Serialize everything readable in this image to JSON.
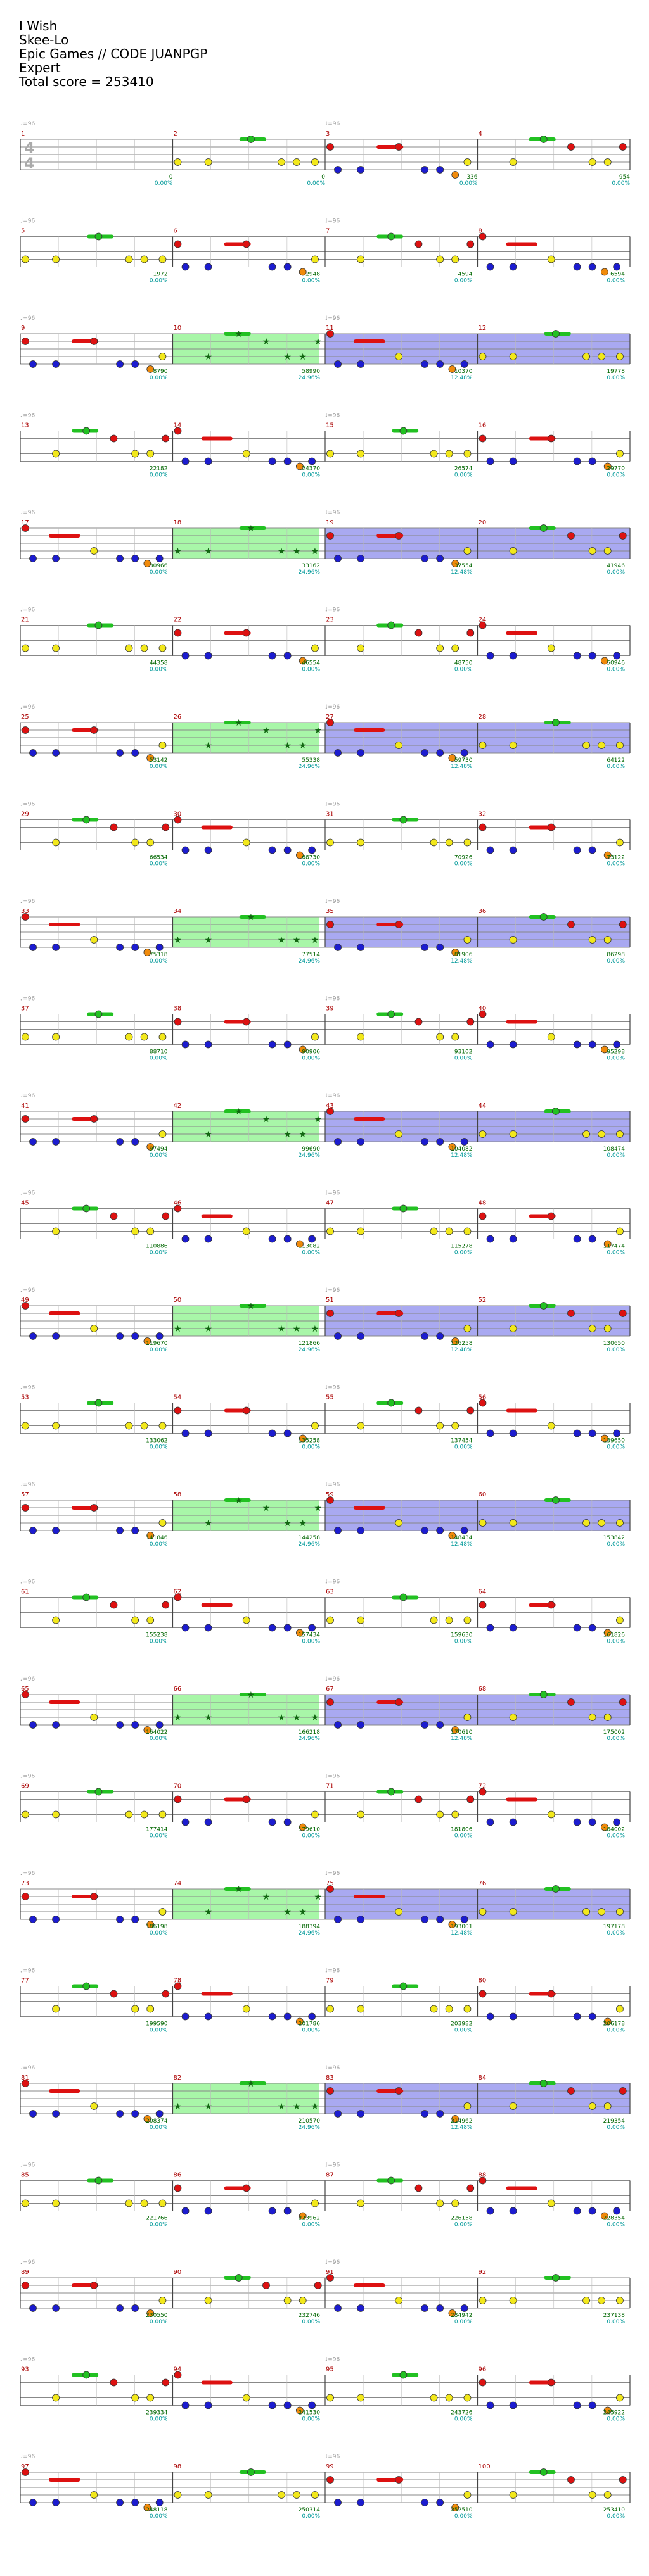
{
  "header": {
    "song": "I Wish",
    "artist": "Skee-Lo",
    "charter": "Epic Games // CODE JUANPGP",
    "difficulty": "Expert",
    "total_score": "Total score = 253410"
  },
  "tempo_label": "♩=96",
  "time_signature": [
    "4",
    "4"
  ],
  "colors": {
    "green": "#22c122",
    "red": "#dd1111",
    "yellow": "#f2e81b",
    "blue": "#1c1ccf",
    "orange": "#f08a0b",
    "star_power": "#9ff59f",
    "overdrive": "#a0a0f0",
    "label": "#009900"
  },
  "measures": [
    {
      "n": "1",
      "score": "",
      "pct": "",
      "sp": false,
      "od": false,
      "group": 0
    },
    {
      "n": "2",
      "score": "0",
      "pct": "0.00%",
      "sp": false,
      "od": false,
      "group": 0
    },
    {
      "n": "3",
      "score": "0",
      "pct": "0.00%",
      "sp": false,
      "od": false,
      "group": 0
    },
    {
      "n": "4",
      "score": "336",
      "pct": "0.00%",
      "sp": false,
      "od": false,
      "group": 0
    },
    {
      "n": "",
      "score": "954",
      "pct": "0.00%",
      "sp": false,
      "od": false,
      "group": 0
    },
    {
      "n": "5",
      "score": "1972",
      "pct": "0.00%",
      "sp": false,
      "od": false,
      "group": 1
    },
    {
      "n": "6",
      "score": "2948",
      "pct": "0.00%",
      "sp": false,
      "od": false,
      "group": 1
    },
    {
      "n": "7",
      "score": "4594",
      "pct": "0.00%",
      "sp": false,
      "od": false,
      "group": 1
    },
    {
      "n": "8",
      "score": "6594",
      "pct": "0.00%",
      "sp": false,
      "od": false,
      "group": 1
    },
    {
      "n": "9",
      "score": "8790",
      "pct": "0.00%",
      "sp": false,
      "od": false,
      "group": 2
    },
    {
      "n": "10",
      "score": "58990",
      "pct": "24.96%",
      "sp": true,
      "od": false,
      "group": 2
    },
    {
      "n": "11",
      "score": "10370",
      "pct": "12.48%",
      "sp": false,
      "od": true,
      "group": 2
    },
    {
      "n": "12",
      "score": "19778",
      "pct": "0.00%",
      "sp": false,
      "od": true,
      "group": 2
    }
  ],
  "rows": [
    {
      "labels": [
        "1",
        "2",
        "3",
        "4"
      ],
      "scores": [
        "",
        "0",
        "0",
        "336",
        "954"
      ],
      "pcts": [
        "",
        "0.00%",
        "0.00%",
        "0.00%",
        "0.00%"
      ],
      "sp": false,
      "od": false
    },
    {
      "labels": [
        "5",
        "6",
        "7",
        "8"
      ],
      "scores": [
        "1972",
        "2948",
        "4594",
        "6594"
      ],
      "pcts": [
        "0.00%",
        "0.00%",
        "0.00%",
        "0.00%"
      ],
      "sp": false,
      "od": false
    },
    {
      "labels": [
        "9",
        "10",
        "11",
        "12"
      ],
      "scores": [
        "8790",
        "58990",
        "10370",
        "19778"
      ],
      "pcts": [
        "0.00%",
        "24.96%",
        "12.48%",
        "0.00%"
      ],
      "sp": true,
      "od": true
    },
    {
      "labels": [
        "13",
        "14",
        "15",
        "16"
      ],
      "scores": [
        "22182",
        "24370",
        "26574",
        "29770"
      ],
      "pcts": [
        "0.00%",
        "0.00%",
        "0.00%",
        "0.00%"
      ],
      "sp": false,
      "od": false
    },
    {
      "labels": [
        "17",
        "18",
        "19",
        "20"
      ],
      "scores": [
        "30966",
        "33162",
        "37554",
        "41946"
      ],
      "pcts": [
        "0.00%",
        "24.96%",
        "12.48%",
        "0.00%"
      ],
      "sp": true,
      "od": true
    },
    {
      "labels": [
        "21",
        "22",
        "23",
        "24"
      ],
      "scores": [
        "44358",
        "46554",
        "48750",
        "50946"
      ],
      "pcts": [
        "0.00%",
        "0.00%",
        "0.00%",
        "0.00%"
      ],
      "sp": false,
      "od": false
    },
    {
      "labels": [
        "25",
        "26",
        "27",
        "28"
      ],
      "scores": [
        "53142",
        "55338",
        "59730",
        "64122"
      ],
      "pcts": [
        "0.00%",
        "24.96%",
        "12.48%",
        "0.00%"
      ],
      "sp": true,
      "od": true
    },
    {
      "labels": [
        "29",
        "30",
        "31",
        "32"
      ],
      "scores": [
        "66534",
        "68730",
        "70926",
        "73122"
      ],
      "pcts": [
        "0.00%",
        "0.00%",
        "0.00%",
        "0.00%"
      ],
      "sp": false,
      "od": false
    },
    {
      "labels": [
        "33",
        "34",
        "35",
        "36"
      ],
      "scores": [
        "75318",
        "77514",
        "81906",
        "86298"
      ],
      "pcts": [
        "0.00%",
        "24.96%",
        "12.48%",
        "0.00%"
      ],
      "sp": true,
      "od": true
    },
    {
      "labels": [
        "37",
        "38",
        "39",
        "40"
      ],
      "scores": [
        "88710",
        "90906",
        "93102",
        "95298"
      ],
      "pcts": [
        "0.00%",
        "0.00%",
        "0.00%",
        "0.00%"
      ],
      "sp": false,
      "od": false
    },
    {
      "labels": [
        "41",
        "42",
        "43",
        "44"
      ],
      "scores": [
        "97494",
        "99690",
        "104082",
        "108474"
      ],
      "pcts": [
        "0.00%",
        "24.96%",
        "12.48%",
        "0.00%"
      ],
      "sp": true,
      "od": true
    },
    {
      "labels": [
        "45",
        "46",
        "47",
        "48"
      ],
      "scores": [
        "110886",
        "113082",
        "115278",
        "117474"
      ],
      "pcts": [
        "0.00%",
        "0.00%",
        "0.00%",
        "0.00%"
      ],
      "sp": false,
      "od": false
    },
    {
      "labels": [
        "49",
        "50",
        "51",
        "52"
      ],
      "scores": [
        "119670",
        "121866",
        "126258",
        "130650"
      ],
      "pcts": [
        "0.00%",
        "24.96%",
        "12.48%",
        "0.00%"
      ],
      "sp": true,
      "od": true
    },
    {
      "labels": [
        "53",
        "54",
        "55",
        "56"
      ],
      "scores": [
        "133062",
        "135258",
        "137454",
        "139650"
      ],
      "pcts": [
        "0.00%",
        "0.00%",
        "0.00%",
        "0.00%"
      ],
      "sp": false,
      "od": false
    },
    {
      "labels": [
        "57",
        "58",
        "59",
        "60"
      ],
      "scores": [
        "141846",
        "144258",
        "148434",
        "153842"
      ],
      "pcts": [
        "0.00%",
        "24.96%",
        "12.48%",
        "0.00%"
      ],
      "sp": true,
      "od": true
    },
    {
      "labels": [
        "61",
        "62",
        "63",
        "64"
      ],
      "scores": [
        "155238",
        "157434",
        "159630",
        "161826"
      ],
      "pcts": [
        "0.00%",
        "0.00%",
        "0.00%",
        "0.00%"
      ],
      "sp": false,
      "od": false
    },
    {
      "labels": [
        "65",
        "66",
        "67",
        "68"
      ],
      "scores": [
        "164022",
        "166218",
        "170610",
        "175002"
      ],
      "pcts": [
        "0.00%",
        "24.96%",
        "12.48%",
        "0.00%"
      ],
      "sp": true,
      "od": true
    },
    {
      "labels": [
        "69",
        "70",
        "71",
        "72"
      ],
      "scores": [
        "177414",
        "179610",
        "181806",
        "184002"
      ],
      "pcts": [
        "0.00%",
        "0.00%",
        "0.00%",
        "0.00%"
      ],
      "sp": false,
      "od": false
    },
    {
      "labels": [
        "73",
        "74",
        "75",
        "76"
      ],
      "scores": [
        "186198",
        "188394",
        "193001",
        "197178"
      ],
      "pcts": [
        "0.00%",
        "24.96%",
        "12.48%",
        "0.00%"
      ],
      "sp": true,
      "od": true
    },
    {
      "labels": [
        "77",
        "78",
        "79",
        "80"
      ],
      "scores": [
        "199590",
        "201786",
        "203982",
        "206178"
      ],
      "pcts": [
        "0.00%",
        "0.00%",
        "0.00%",
        "0.00%"
      ],
      "sp": false,
      "od": false
    },
    {
      "labels": [
        "81",
        "82",
        "83",
        "84"
      ],
      "scores": [
        "208374",
        "210570",
        "214962",
        "219354"
      ],
      "pcts": [
        "0.00%",
        "24.96%",
        "12.48%",
        "0.00%"
      ],
      "sp": true,
      "od": true
    },
    {
      "labels": [
        "85",
        "86",
        "87",
        "88"
      ],
      "scores": [
        "221766",
        "223962",
        "226158",
        "228354"
      ],
      "pcts": [
        "0.00%",
        "0.00%",
        "0.00%",
        "0.00%"
      ],
      "sp": false,
      "od": false
    },
    {
      "labels": [
        "89",
        "90",
        "91",
        "92"
      ],
      "scores": [
        "230550",
        "232746",
        "234942",
        "237138"
      ],
      "pcts": [
        "0.00%",
        "0.00%",
        "0.00%",
        "0.00%"
      ],
      "sp": false,
      "od": false
    },
    {
      "labels": [
        "93",
        "94",
        "95",
        "96"
      ],
      "scores": [
        "239334",
        "241530",
        "243726",
        "245922"
      ],
      "pcts": [
        "0.00%",
        "0.00%",
        "0.00%",
        "0.00%"
      ],
      "sp": false,
      "od": false
    },
    {
      "labels": [
        "97",
        "98",
        "99",
        "100"
      ],
      "scores": [
        "248118",
        "250314",
        "252510",
        "253410"
      ],
      "pcts": [
        "0.00%",
        "0.00%",
        "0.00%",
        "0.00%"
      ],
      "sp": false,
      "od": false
    }
  ]
}
